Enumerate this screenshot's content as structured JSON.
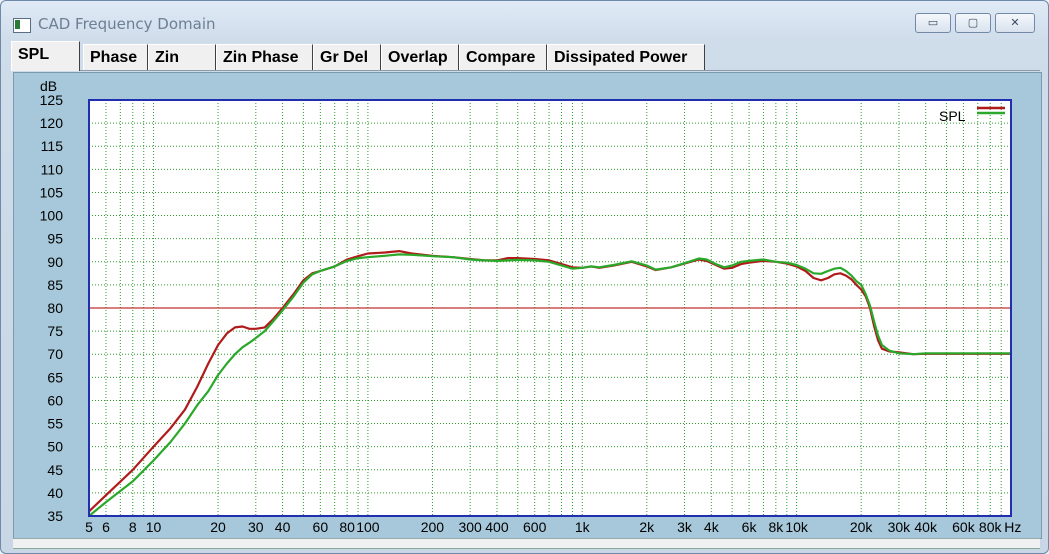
{
  "window": {
    "title": "CAD Frequency Domain",
    "buttons": {
      "minimize": "▭",
      "maximize": "▢",
      "close": "✕"
    }
  },
  "tabs": [
    {
      "label": "SPL",
      "active": true
    },
    {
      "label": "Phase",
      "active": false
    },
    {
      "label": "Zin",
      "active": false
    },
    {
      "label": "Zin Phase",
      "active": false
    },
    {
      "label": "Gr Del",
      "active": false
    },
    {
      "label": "Overlap",
      "active": false
    },
    {
      "label": "Compare",
      "active": false
    },
    {
      "label": "Dissipated Power",
      "active": false
    }
  ],
  "colors": {
    "plot_background": "#ffffff",
    "frame": "#1f2fb0",
    "grid": "#2e9a2e",
    "reference_line": "#c03030",
    "series_red": "#b01a1a",
    "series_green": "#2aa82a"
  },
  "chart_data": {
    "type": "line",
    "ylabel": "dB",
    "xscale": "log",
    "xlim": [
      5,
      100000
    ],
    "ylim": [
      35,
      125
    ],
    "yticks": [
      35,
      40,
      45,
      50,
      55,
      60,
      65,
      70,
      75,
      80,
      85,
      90,
      95,
      100,
      105,
      110,
      115,
      120,
      125
    ],
    "xticks": [
      {
        "value": 5,
        "label": "5"
      },
      {
        "value": 6,
        "label": "6"
      },
      {
        "value": 8,
        "label": "8"
      },
      {
        "value": 10,
        "label": "10"
      },
      {
        "value": 20,
        "label": "20"
      },
      {
        "value": 30,
        "label": "30"
      },
      {
        "value": 40,
        "label": "40"
      },
      {
        "value": 60,
        "label": "60"
      },
      {
        "value": 80,
        "label": "80"
      },
      {
        "value": 100,
        "label": "100"
      },
      {
        "value": 200,
        "label": "200"
      },
      {
        "value": 300,
        "label": "300"
      },
      {
        "value": 400,
        "label": "400"
      },
      {
        "value": 600,
        "label": "600"
      },
      {
        "value": 1000,
        "label": "1k"
      },
      {
        "value": 2000,
        "label": "2k"
      },
      {
        "value": 3000,
        "label": "3k"
      },
      {
        "value": 4000,
        "label": "4k"
      },
      {
        "value": 6000,
        "label": "6k"
      },
      {
        "value": 8000,
        "label": "8k"
      },
      {
        "value": 10000,
        "label": "10k"
      },
      {
        "value": 20000,
        "label": "20k"
      },
      {
        "value": 30000,
        "label": "30k"
      },
      {
        "value": 40000,
        "label": "40k"
      },
      {
        "value": 60000,
        "label": "60k"
      },
      {
        "value": 80000,
        "label": "80k"
      }
    ],
    "x_unit": "Hz",
    "grid": true,
    "legend": {
      "position": "top-right",
      "label": "SPL"
    },
    "reference_line": 80,
    "series": [
      {
        "color": "#b01a1a",
        "points": [
          [
            5,
            36
          ],
          [
            6,
            39.5
          ],
          [
            8,
            45
          ],
          [
            10,
            50
          ],
          [
            12,
            54
          ],
          [
            14,
            58
          ],
          [
            16,
            63
          ],
          [
            18,
            68
          ],
          [
            20,
            72
          ],
          [
            22,
            74.5
          ],
          [
            24,
            75.8
          ],
          [
            26,
            76
          ],
          [
            28,
            75.5
          ],
          [
            30,
            75.5
          ],
          [
            33,
            75.8
          ],
          [
            36,
            77.5
          ],
          [
            40,
            80
          ],
          [
            45,
            83
          ],
          [
            50,
            86
          ],
          [
            55,
            87.5
          ],
          [
            60,
            88
          ],
          [
            70,
            89
          ],
          [
            80,
            90.5
          ],
          [
            90,
            91.2
          ],
          [
            100,
            91.8
          ],
          [
            120,
            92
          ],
          [
            140,
            92.3
          ],
          [
            160,
            91.8
          ],
          [
            200,
            91.3
          ],
          [
            250,
            91
          ],
          [
            300,
            90.6
          ],
          [
            350,
            90.3
          ],
          [
            400,
            90.3
          ],
          [
            450,
            90.8
          ],
          [
            500,
            90.8
          ],
          [
            600,
            90.6
          ],
          [
            700,
            90.3
          ],
          [
            800,
            89.5
          ],
          [
            900,
            88.8
          ],
          [
            1000,
            88.7
          ],
          [
            1100,
            89
          ],
          [
            1200,
            88.7
          ],
          [
            1400,
            89.2
          ],
          [
            1700,
            90
          ],
          [
            2000,
            89
          ],
          [
            2200,
            88.2
          ],
          [
            2600,
            88.8
          ],
          [
            3000,
            89.6
          ],
          [
            3500,
            90.5
          ],
          [
            3800,
            90.2
          ],
          [
            4200,
            89.3
          ],
          [
            4600,
            88.5
          ],
          [
            5000,
            88.7
          ],
          [
            5500,
            89.5
          ],
          [
            6000,
            89.8
          ],
          [
            7000,
            90.2
          ],
          [
            8000,
            90
          ],
          [
            9000,
            89.6
          ],
          [
            10000,
            89
          ],
          [
            11000,
            88
          ],
          [
            12000,
            86.5
          ],
          [
            13000,
            86
          ],
          [
            14000,
            86.5
          ],
          [
            15000,
            87.3
          ],
          [
            16000,
            87.5
          ],
          [
            17000,
            87
          ],
          [
            18000,
            86.2
          ],
          [
            19000,
            85
          ],
          [
            20000,
            84
          ],
          [
            21000,
            82.5
          ],
          [
            22000,
            80
          ],
          [
            23000,
            76
          ],
          [
            24000,
            73
          ],
          [
            25000,
            71.2
          ],
          [
            27000,
            70.6
          ],
          [
            30000,
            70.4
          ],
          [
            35000,
            70
          ],
          [
            40000,
            70.1
          ],
          [
            60000,
            70.1
          ],
          [
            100000,
            70.1
          ]
        ]
      },
      {
        "color": "#2aa82a",
        "points": [
          [
            5,
            35
          ],
          [
            6,
            38
          ],
          [
            8,
            42.5
          ],
          [
            10,
            47
          ],
          [
            12,
            51
          ],
          [
            14,
            55
          ],
          [
            16,
            59
          ],
          [
            18,
            62
          ],
          [
            20,
            65.5
          ],
          [
            22,
            68
          ],
          [
            24,
            70
          ],
          [
            26,
            71.5
          ],
          [
            28,
            72.5
          ],
          [
            30,
            73.5
          ],
          [
            33,
            75
          ],
          [
            36,
            77
          ],
          [
            40,
            79.5
          ],
          [
            45,
            82.5
          ],
          [
            50,
            85.5
          ],
          [
            55,
            87.3
          ],
          [
            60,
            88
          ],
          [
            70,
            89
          ],
          [
            80,
            90.2
          ],
          [
            90,
            90.8
          ],
          [
            100,
            91
          ],
          [
            120,
            91.3
          ],
          [
            140,
            91.6
          ],
          [
            160,
            91.5
          ],
          [
            200,
            91.2
          ],
          [
            250,
            91
          ],
          [
            300,
            90.5
          ],
          [
            350,
            90.3
          ],
          [
            400,
            90.2
          ],
          [
            450,
            90.3
          ],
          [
            500,
            90.4
          ],
          [
            600,
            90.3
          ],
          [
            700,
            90
          ],
          [
            800,
            89.2
          ],
          [
            900,
            88.5
          ],
          [
            1000,
            88.7
          ],
          [
            1100,
            89
          ],
          [
            1200,
            88.8
          ],
          [
            1400,
            89.3
          ],
          [
            1700,
            90.1
          ],
          [
            2000,
            89.2
          ],
          [
            2200,
            88.3
          ],
          [
            2600,
            88.8
          ],
          [
            3000,
            89.7
          ],
          [
            3500,
            90.7
          ],
          [
            3800,
            90.5
          ],
          [
            4200,
            89.5
          ],
          [
            4600,
            88.8
          ],
          [
            5000,
            89.2
          ],
          [
            5500,
            90
          ],
          [
            6000,
            90.2
          ],
          [
            7000,
            90.5
          ],
          [
            8000,
            90
          ],
          [
            9000,
            89.8
          ],
          [
            10000,
            89.3
          ],
          [
            11000,
            88.5
          ],
          [
            12000,
            87.5
          ],
          [
            13000,
            87.4
          ],
          [
            14000,
            88
          ],
          [
            15000,
            88.5
          ],
          [
            16000,
            88.7
          ],
          [
            17000,
            88
          ],
          [
            18000,
            87
          ],
          [
            19000,
            85.8
          ],
          [
            20000,
            85
          ],
          [
            21000,
            83
          ],
          [
            22000,
            80.5
          ],
          [
            23000,
            77
          ],
          [
            24000,
            74
          ],
          [
            25000,
            72
          ],
          [
            27000,
            70.8
          ],
          [
            30000,
            70.2
          ],
          [
            35000,
            70
          ],
          [
            40000,
            70.2
          ],
          [
            60000,
            70.2
          ],
          [
            100000,
            70.2
          ]
        ]
      }
    ]
  }
}
